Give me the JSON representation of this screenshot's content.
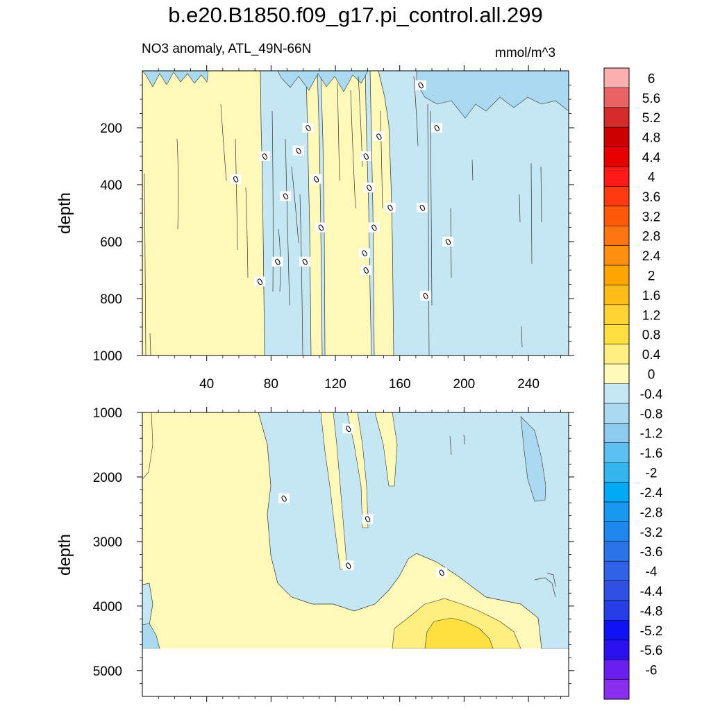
{
  "title": "b.e20.B1850.f09_g17.pi_control.all.299",
  "subtitle": "NO3 anomaly, ATL_49N-66N",
  "units": "mmol/m^3",
  "chart_data": [
    {
      "type": "heatmap",
      "panel": "upper",
      "ylabel": "depth",
      "xlim": [
        0,
        265
      ],
      "ylim": [
        1000,
        0
      ],
      "x_ticks": [
        40,
        80,
        120,
        160,
        200,
        240
      ],
      "y_ticks": [
        200,
        400,
        600,
        800,
        1000
      ],
      "regions": [
        {
          "x": [
            0,
            75
          ],
          "sign": "positive"
        },
        {
          "x": [
            75,
            108
          ],
          "sign": "negative"
        },
        {
          "x": [
            108,
            155
          ],
          "sign": "positive"
        },
        {
          "x": [
            155,
            265
          ],
          "sign": "negative"
        }
      ],
      "contour_labels": [
        {
          "text": "0",
          "x": 58,
          "y": 380
        },
        {
          "text": "0",
          "x": 76,
          "y": 300
        },
        {
          "text": "0",
          "x": 73,
          "y": 740
        },
        {
          "text": "0",
          "x": 84,
          "y": 670
        },
        {
          "text": "0",
          "x": 89,
          "y": 440
        },
        {
          "text": "0",
          "x": 97,
          "y": 280
        },
        {
          "text": "0",
          "x": 101,
          "y": 670
        },
        {
          "text": "0",
          "x": 103,
          "y": 200
        },
        {
          "text": "0",
          "x": 108,
          "y": 380
        },
        {
          "text": "0",
          "x": 111,
          "y": 550
        },
        {
          "text": "0",
          "x": 138,
          "y": 640
        },
        {
          "text": "0",
          "x": 139,
          "y": 300
        },
        {
          "text": "0",
          "x": 139,
          "y": 700
        },
        {
          "text": "0",
          "x": 141,
          "y": 410
        },
        {
          "text": "0",
          "x": 144,
          "y": 550
        },
        {
          "text": "0",
          "x": 147,
          "y": 230
        },
        {
          "text": "0",
          "x": 154,
          "y": 480
        },
        {
          "text": "0",
          "x": 173,
          "y": 50
        },
        {
          "text": "0",
          "x": 174,
          "y": 480
        },
        {
          "text": "0",
          "x": 176,
          "y": 790
        },
        {
          "text": "0",
          "x": 183,
          "y": 200
        },
        {
          "text": "0",
          "x": 190,
          "y": 600
        }
      ]
    },
    {
      "type": "heatmap",
      "panel": "lower",
      "ylabel": "depth",
      "xlim": [
        0,
        265
      ],
      "ylim": [
        5400,
        1000
      ],
      "data_bottom_depth": 4650,
      "y_ticks": [
        1000,
        2000,
        3000,
        4000,
        5000
      ],
      "max_anomaly_region": {
        "x": [
          170,
          215
        ],
        "depth": [
          4400,
          4650
        ],
        "band": "0.8 to 1.2"
      },
      "contour_labels": [
        {
          "text": "0",
          "x": 128,
          "y": 1250
        },
        {
          "text": "0",
          "x": 88,
          "y": 2330
        },
        {
          "text": "0",
          "x": 140,
          "y": 2650
        },
        {
          "text": "0",
          "x": 128,
          "y": 3370
        },
        {
          "text": "0",
          "x": 186,
          "y": 3480
        }
      ]
    }
  ],
  "colorbar": {
    "labels": [
      "6",
      "5.6",
      "5.2",
      "4.8",
      "4.4",
      "4",
      "3.6",
      "3.2",
      "2.8",
      "2.4",
      "2",
      "1.6",
      "1.2",
      "0.8",
      "0.4",
      "0",
      "-0.4",
      "-0.8",
      "-1.2",
      "-1.6",
      "-2",
      "-2.4",
      "-2.8",
      "-3.2",
      "-3.6",
      "-4",
      "-4.4",
      "-4.8",
      "-5.2",
      "-5.6",
      "-6"
    ],
    "colors": [
      "#fbb0b0",
      "#e96363",
      "#d42a2a",
      "#cc0000",
      "#e60000",
      "#ff1a1a",
      "#ff3a10",
      "#ff5a0a",
      "#ff7510",
      "#ff9010",
      "#ffa500",
      "#ffbd1a",
      "#ffd330",
      "#ffe040",
      "#ffee80",
      "#fff8b8",
      "#c5e6f3",
      "#aad9f0",
      "#8ccaee",
      "#5cc0f2",
      "#33b5f0",
      "#00aaf5",
      "#1799f2",
      "#1f86ee",
      "#2a74ea",
      "#2f62e6",
      "#3050e3",
      "#263ee6",
      "#1010f5",
      "#2a10ee",
      "#6a1ef0",
      "#8a2ef0"
    ]
  }
}
